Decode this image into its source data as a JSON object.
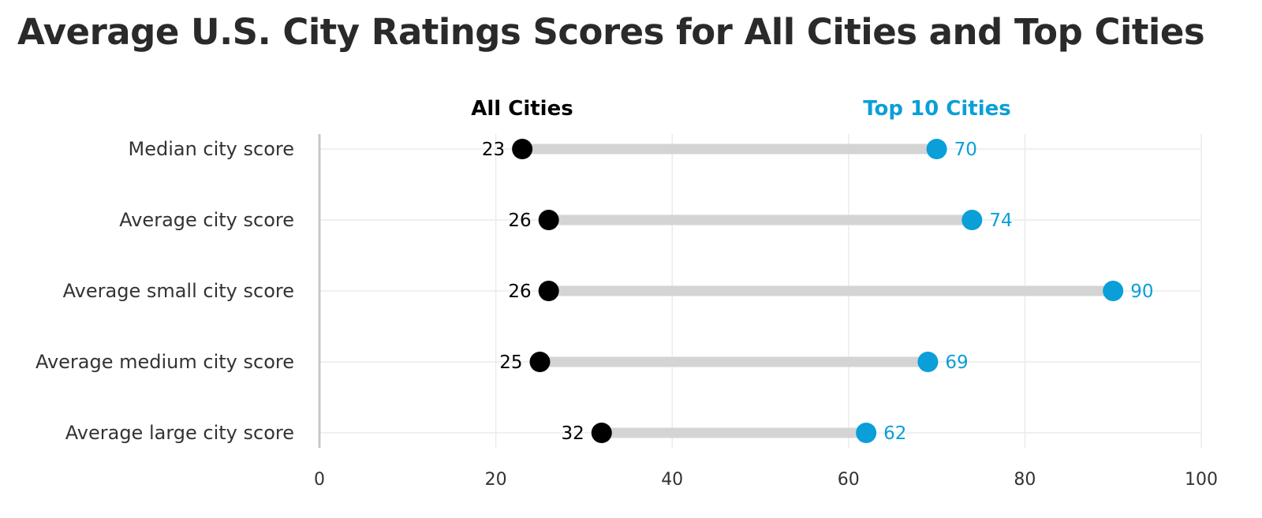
{
  "chart_data": {
    "type": "dumbbell",
    "title": "Average U.S. City Ratings Scores for All Cities and Top Cities",
    "categories": [
      "Median city score",
      "Average city score",
      "Average small city score",
      "Average medium city score",
      "Average large city score"
    ],
    "series": [
      {
        "name": "All Cities",
        "values": [
          23,
          26,
          26,
          25,
          32
        ],
        "color": "#000000"
      },
      {
        "name": "Top 10 Cities",
        "values": [
          70,
          74,
          90,
          69,
          62
        ],
        "color": "#0a9fd8"
      }
    ],
    "xlim": [
      0,
      100
    ],
    "xticks": [
      0,
      20,
      40,
      60,
      80,
      100
    ],
    "grid": true,
    "connector_color": "#d4d4d4",
    "legend_placement": "top"
  }
}
